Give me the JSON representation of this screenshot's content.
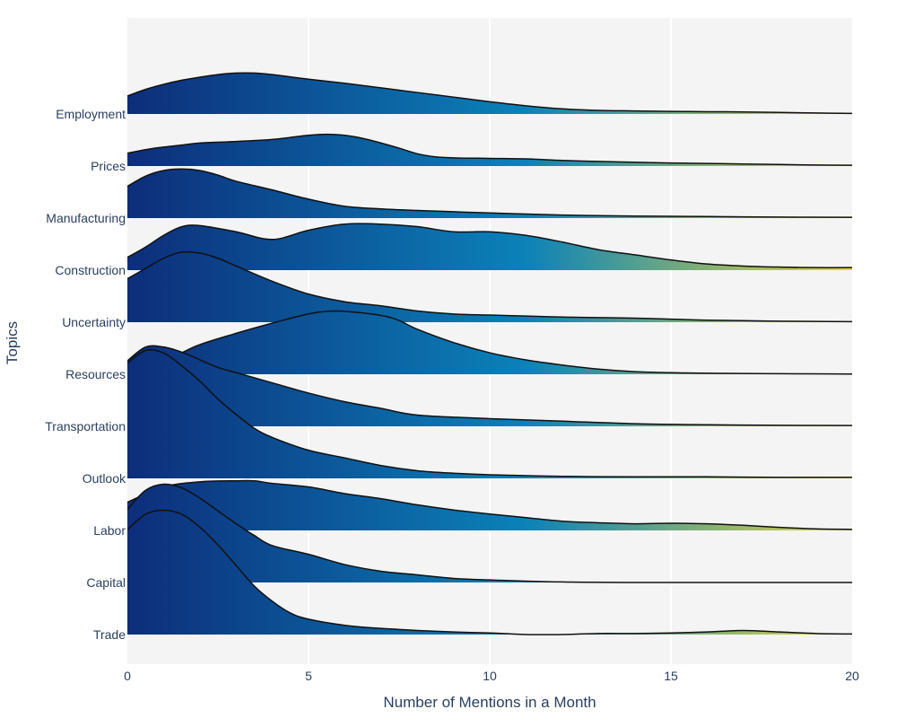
{
  "chart_data": {
    "type": "ridgeline",
    "xlabel": "Number of Mentions in a Month",
    "ylabel": "Topics",
    "xlim": [
      0,
      20
    ],
    "x_ticks": [
      0,
      5,
      10,
      15,
      20
    ],
    "colorscale": [
      "#0d2d7a",
      "#0b82b9",
      "#e5d540"
    ],
    "grid": true,
    "categories": [
      "Employment",
      "Prices",
      "Manufacturing",
      "Construction",
      "Uncertainty",
      "Resources",
      "Transportation",
      "Outlook",
      "Labor",
      "Capital",
      "Trade"
    ],
    "series": [
      {
        "name": "Employment",
        "x": [
          0,
          0.5,
          1,
          1.5,
          2,
          2.5,
          3,
          3.5,
          4,
          5,
          6,
          7,
          8,
          9,
          10,
          11,
          12,
          13,
          14,
          15,
          16,
          17,
          18,
          19,
          20
        ],
        "y": [
          0.35,
          0.48,
          0.58,
          0.66,
          0.72,
          0.77,
          0.8,
          0.8,
          0.77,
          0.68,
          0.6,
          0.51,
          0.42,
          0.33,
          0.24,
          0.16,
          0.1,
          0.07,
          0.06,
          0.05,
          0.045,
          0.04,
          0.03,
          0.02,
          0.01
        ]
      },
      {
        "name": "Prices",
        "x": [
          0,
          0.5,
          1,
          1.5,
          2,
          3,
          4,
          4.5,
          5,
          5.5,
          6,
          6.5,
          7,
          7.5,
          8,
          8.5,
          9,
          10,
          11,
          12,
          13,
          14,
          15,
          16,
          17,
          18,
          19,
          20
        ],
        "y": [
          0.25,
          0.32,
          0.37,
          0.41,
          0.45,
          0.48,
          0.52,
          0.56,
          0.6,
          0.62,
          0.6,
          0.54,
          0.45,
          0.35,
          0.24,
          0.18,
          0.16,
          0.15,
          0.14,
          0.11,
          0.09,
          0.075,
          0.06,
          0.05,
          0.04,
          0.03,
          0.02,
          0.015
        ]
      },
      {
        "name": "Manufacturing",
        "x": [
          0,
          0.5,
          1,
          1.5,
          2,
          2.5,
          3,
          4,
          5,
          6,
          7,
          8,
          10,
          12,
          14,
          16,
          18,
          20
        ],
        "y": [
          0.62,
          0.82,
          0.93,
          0.96,
          0.93,
          0.84,
          0.72,
          0.55,
          0.37,
          0.23,
          0.18,
          0.15,
          0.1,
          0.06,
          0.04,
          0.03,
          0.02,
          0.015
        ]
      },
      {
        "name": "Construction",
        "x": [
          0,
          0.5,
          1,
          1.5,
          2,
          3,
          4,
          5,
          6,
          7,
          8,
          9,
          10,
          11,
          12,
          13,
          14,
          15,
          16,
          17,
          18,
          19,
          20
        ],
        "y": [
          0.25,
          0.45,
          0.68,
          0.85,
          0.87,
          0.75,
          0.6,
          0.78,
          0.9,
          0.9,
          0.85,
          0.75,
          0.75,
          0.68,
          0.55,
          0.4,
          0.3,
          0.2,
          0.12,
          0.08,
          0.06,
          0.05,
          0.05
        ]
      },
      {
        "name": "Uncertainty",
        "x": [
          0,
          0.5,
          1,
          1.5,
          2,
          2.5,
          3,
          4,
          5,
          6,
          7,
          8,
          9,
          10,
          11,
          12,
          13,
          14,
          15,
          16,
          17,
          18,
          19,
          20
        ],
        "y": [
          0.85,
          1.05,
          1.25,
          1.37,
          1.35,
          1.25,
          1.1,
          0.8,
          0.55,
          0.4,
          0.32,
          0.22,
          0.16,
          0.14,
          0.12,
          0.1,
          0.09,
          0.08,
          0.06,
          0.04,
          0.03,
          0.02,
          0.015,
          0.01
        ]
      },
      {
        "name": "Resources",
        "x": [
          0,
          1,
          1.5,
          2,
          3,
          4,
          5,
          5.5,
          6,
          7,
          7.5,
          8,
          9,
          10,
          11,
          12,
          13,
          14,
          15,
          16,
          18,
          20
        ],
        "y": [
          0.12,
          0.28,
          0.42,
          0.58,
          0.8,
          1.0,
          1.18,
          1.23,
          1.23,
          1.15,
          1.05,
          0.88,
          0.62,
          0.42,
          0.28,
          0.18,
          0.1,
          0.05,
          0.03,
          0.02,
          0.01,
          0.005
        ]
      },
      {
        "name": "Transportation",
        "x": [
          0,
          0.5,
          1,
          1.5,
          2,
          2.5,
          3,
          4,
          5,
          6,
          7,
          8,
          10,
          12,
          14,
          16,
          18,
          20
        ],
        "y": [
          1.28,
          1.55,
          1.55,
          1.45,
          1.3,
          1.15,
          1.05,
          0.85,
          0.65,
          0.48,
          0.35,
          0.22,
          0.15,
          0.1,
          0.05,
          0.03,
          0.02,
          0.015
        ]
      },
      {
        "name": "Outlook",
        "x": [
          0,
          0.5,
          1,
          1.5,
          2,
          2.5,
          3,
          3.5,
          4,
          5,
          6,
          7,
          8,
          9,
          10,
          12,
          14,
          16,
          18,
          20
        ],
        "y": [
          2.25,
          2.5,
          2.45,
          2.2,
          1.9,
          1.55,
          1.25,
          0.98,
          0.8,
          0.55,
          0.4,
          0.25,
          0.15,
          0.1,
          0.07,
          0.04,
          0.03,
          0.03,
          0.02,
          0.02
        ]
      },
      {
        "name": "Labor",
        "x": [
          0,
          1,
          2,
          3,
          3.5,
          4,
          5,
          6,
          7,
          8,
          9,
          10,
          11,
          12,
          13,
          14,
          15,
          16,
          17,
          18,
          19,
          20
        ],
        "y": [
          0.55,
          0.85,
          0.95,
          0.97,
          0.97,
          0.92,
          0.85,
          0.72,
          0.62,
          0.5,
          0.4,
          0.32,
          0.25,
          0.18,
          0.15,
          0.13,
          0.14,
          0.13,
          0.1,
          0.06,
          0.03,
          0.02
        ]
      },
      {
        "name": "Capital",
        "x": [
          0,
          0.5,
          1,
          1.5,
          2,
          2.5,
          3,
          3.5,
          4,
          5,
          6,
          7,
          8,
          9,
          10,
          12,
          14,
          16,
          18,
          20
        ],
        "y": [
          1.43,
          1.8,
          1.92,
          1.85,
          1.65,
          1.4,
          1.15,
          0.92,
          0.72,
          0.55,
          0.35,
          0.22,
          0.15,
          0.08,
          0.05,
          0.01,
          0.0,
          0.0,
          0.0,
          0.0
        ]
      },
      {
        "name": "Trade",
        "x": [
          0,
          0.5,
          1,
          1.5,
          2,
          2.5,
          3,
          3.5,
          4,
          4.5,
          5,
          6,
          7,
          8,
          9,
          10,
          11,
          12,
          13,
          14,
          15,
          16,
          17,
          18,
          19,
          20
        ],
        "y": [
          2.05,
          2.35,
          2.43,
          2.35,
          2.1,
          1.75,
          1.35,
          0.95,
          0.65,
          0.42,
          0.3,
          0.18,
          0.12,
          0.08,
          0.05,
          0.03,
          0.0,
          0.0,
          0.02,
          0.02,
          0.03,
          0.05,
          0.08,
          0.05,
          0.02,
          0.01
        ]
      }
    ]
  }
}
